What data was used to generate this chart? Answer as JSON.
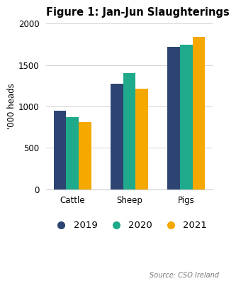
{
  "title": "Figure 1: Jan-Jun Slaughterings",
  "categories": [
    "Cattle",
    "Sheep",
    "Pigs"
  ],
  "years": [
    "2019",
    "2020",
    "2021"
  ],
  "values": {
    "2019": [
      950,
      1270,
      1720
    ],
    "2020": [
      870,
      1400,
      1740
    ],
    "2021": [
      810,
      1210,
      1840
    ]
  },
  "colors": {
    "2019": "#2d4473",
    "2020": "#1faa8c",
    "2021": "#f5a800"
  },
  "ylabel": "'000 heads",
  "ylim": [
    0,
    2000
  ],
  "yticks": [
    0,
    500,
    1000,
    1500,
    2000
  ],
  "source": "Source: CSO Ireland",
  "bar_width": 0.22,
  "background_color": "#ffffff",
  "title_fontsize": 10.5,
  "axis_fontsize": 8.5,
  "legend_fontsize": 9.5,
  "source_fontsize": 7
}
